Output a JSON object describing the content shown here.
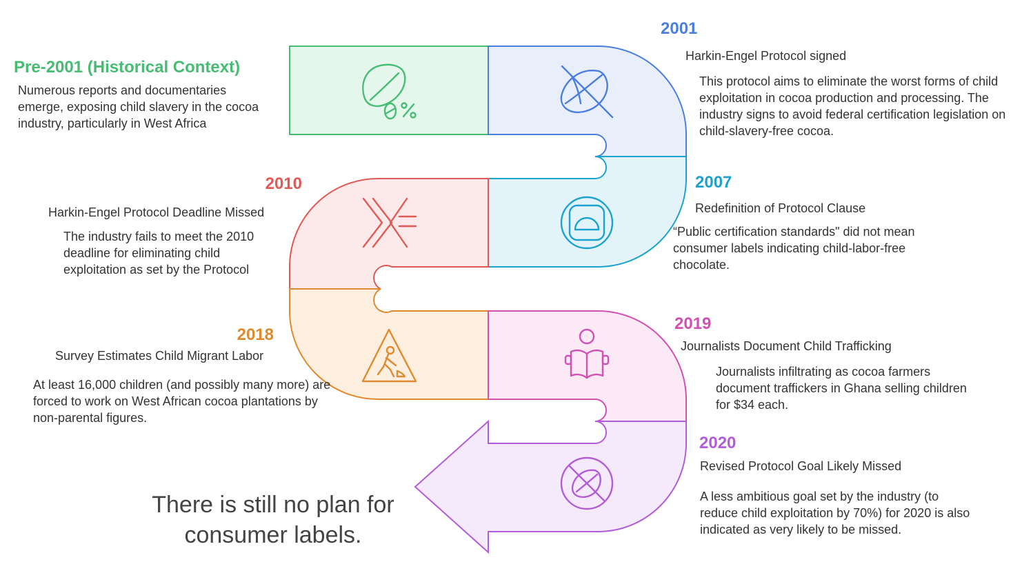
{
  "colors": {
    "pre2001": "#46bd73",
    "y2001": "#4a7fe0",
    "y2007": "#1ba2cf",
    "y2010": "#e05a55",
    "y2018": "#e08a2e",
    "y2019": "#d24fb3",
    "y2020": "#b35bd8",
    "fill_pre2001": "#e5f7ec",
    "fill_2001": "#e9eefb",
    "fill_2007": "#e2f4fa",
    "fill_2010": "#fce9e9",
    "fill_2018": "#fcefe0",
    "fill_2019": "#fbe9f6",
    "fill_2020": "#f4eafb"
  },
  "events": [
    {
      "year": "Pre-2001 (Historical Context)",
      "subtitle": "",
      "description": "Numerous reports and documentaries emerge, exposing child slavery in the cocoa industry, particularly in West Africa",
      "icon": "cocoa-bean-zero-percent-icon"
    },
    {
      "year": "2001",
      "subtitle": "Harkin-Engel Protocol signed",
      "description": "This protocol aims to eliminate the worst forms of child exploitation in cocoa production and processing. The industry signs to avoid federal certification legislation on child-slavery-free cocoa.",
      "icon": "crossed-out-cocoa-bean-icon"
    },
    {
      "year": "2007",
      "subtitle": "Redefinition of Protocol Clause",
      "description": "“Public certification standards\" did not mean consumer labels indicating child-labor-free chocolate.",
      "icon": "protractor-icon"
    },
    {
      "year": "2010",
      "subtitle": "Harkin-Engel Protocol Deadline Missed",
      "description": "The industry fails to meet the 2010 deadline for eliminating child exploitation as set by the Protocol",
      "icon": "greater-than-or-equal-icon"
    },
    {
      "year": "2018",
      "subtitle": "Survey Estimates Child Migrant Labor",
      "description": "At least 16,000 children (and possibly many more) are forced to work on West African cocoa plantations by non-parental figures.",
      "icon": "worker-warning-sign-icon"
    },
    {
      "year": "2019",
      "subtitle": "Journalists Document Child Trafficking",
      "description": "Journalists infiltrating as cocoa farmers document traffickers in Ghana selling children for $34 each.",
      "icon": "person-reading-icon"
    },
    {
      "year": "2020",
      "subtitle": "Revised Protocol Goal Likely Missed",
      "description": "A less ambitious goal set by the industry (to reduce child exploitation by 70%) for 2020 is also indicated as very likely to be missed.",
      "icon": "no-cocoa-bean-icon"
    }
  ],
  "conclusion": "There is still no plan for consumer labels."
}
